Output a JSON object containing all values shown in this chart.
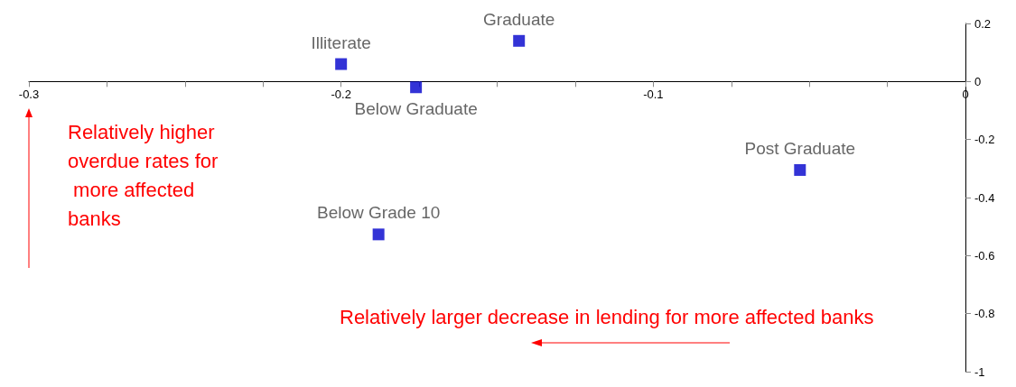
{
  "chart_data": {
    "type": "scatter",
    "marker": "square",
    "grid": false,
    "legend": false,
    "xlim": [
      -0.3,
      0
    ],
    "ylim": [
      -1,
      0.2
    ],
    "xticks": [
      -0.3,
      {
        "value": -0.275,
        "label": null
      },
      {
        "value": -0.25,
        "label": null
      },
      {
        "value": -0.225,
        "label": null
      },
      -0.2,
      {
        "value": -0.175,
        "label": null
      },
      {
        "value": -0.15,
        "label": null
      },
      {
        "value": -0.125,
        "label": null
      },
      -0.1,
      {
        "value": -0.075,
        "label": null
      },
      {
        "value": -0.05,
        "label": null
      },
      {
        "value": -0.025,
        "label": null
      },
      0
    ],
    "yticks": [
      -1,
      -0.8,
      -0.6,
      -0.4,
      -0.2,
      0,
      0.2
    ],
    "series": [
      {
        "name": "Illiterate",
        "color": "#0000cc",
        "x": [
          -0.2
        ],
        "values": [
          0.06
        ]
      },
      {
        "name": "Below Graduate",
        "color": "#0000cc",
        "x": [
          -0.176
        ],
        "values": [
          -0.02
        ]
      },
      {
        "name": "Graduate",
        "color": "#0000cc",
        "x": [
          -0.143
        ],
        "values": [
          0.14
        ]
      },
      {
        "name": "Post Graduate",
        "color": "#0000cc",
        "x": [
          -0.053
        ],
        "values": [
          -0.305
        ]
      },
      {
        "name": "Below Grade 10",
        "color": "#0000cc",
        "x": [
          -0.188
        ],
        "values": [
          -0.527
        ]
      }
    ],
    "annotations": [
      "Relatively higher overdue rates for more affected banks",
      "Relatively larger decrease in lending for more affected banks"
    ]
  }
}
